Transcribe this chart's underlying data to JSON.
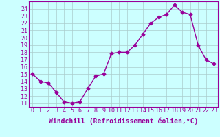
{
  "x": [
    0,
    1,
    2,
    3,
    4,
    5,
    6,
    7,
    8,
    9,
    10,
    11,
    12,
    13,
    14,
    15,
    16,
    17,
    18,
    19,
    20,
    21,
    22,
    23
  ],
  "y": [
    15.0,
    14.0,
    13.8,
    12.5,
    11.2,
    11.0,
    11.2,
    13.0,
    14.7,
    15.0,
    17.8,
    18.0,
    18.0,
    19.0,
    20.5,
    22.0,
    22.8,
    23.2,
    24.5,
    23.5,
    23.2,
    19.0,
    17.0,
    16.4
  ],
  "color": "#990099",
  "bg_color": "#ccffff",
  "grid_color": "#aacccc",
  "xlabel": "Windchill (Refroidissement éolien,°C)",
  "ylim": [
    10.5,
    25.0
  ],
  "xlim": [
    -0.5,
    23.5
  ],
  "yticks": [
    11,
    12,
    13,
    14,
    15,
    16,
    17,
    18,
    19,
    20,
    21,
    22,
    23,
    24
  ],
  "xticks": [
    0,
    1,
    2,
    3,
    4,
    5,
    6,
    7,
    8,
    9,
    10,
    11,
    12,
    13,
    14,
    15,
    16,
    17,
    18,
    19,
    20,
    21,
    22,
    23
  ],
  "marker": "D",
  "markersize": 2.5,
  "linewidth": 1.0,
  "xlabel_fontsize": 7.0,
  "tick_fontsize": 6.0
}
